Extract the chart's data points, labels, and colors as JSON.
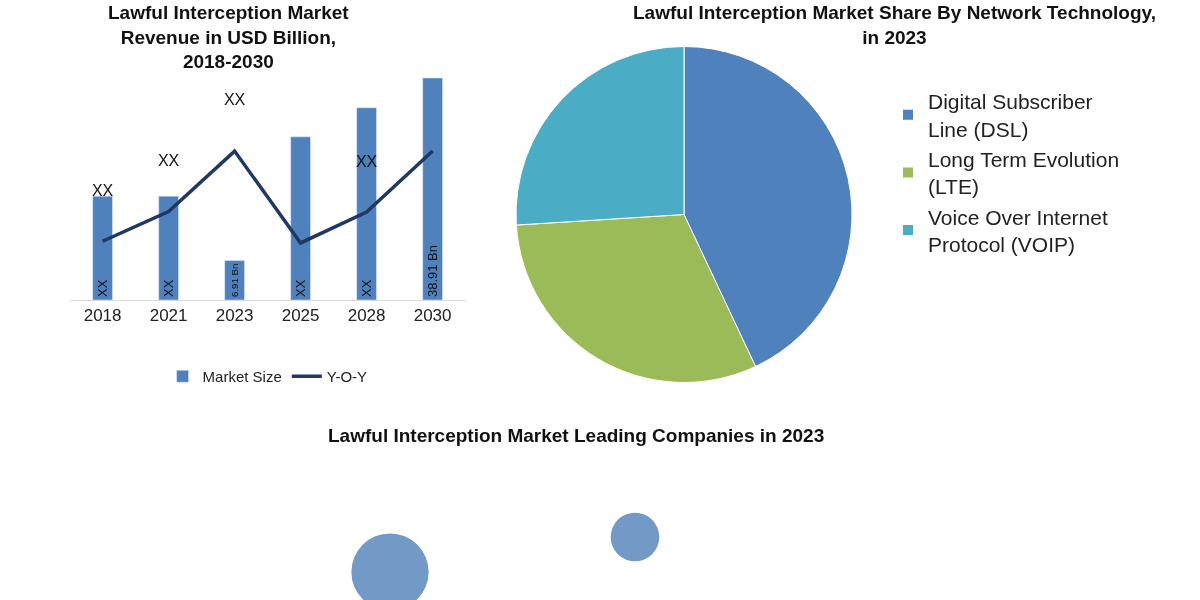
{
  "chart_data": [
    {
      "type": "bar",
      "title": "Lawful Interception Market Revenue in USD Billion, 2018-2030",
      "categories": [
        "2018",
        "2021",
        "2023",
        "2025",
        "2028",
        "2030"
      ],
      "legend": "bottom",
      "tick_labels": "x",
      "series": [
        {
          "name": "Market Size",
          "type": "bar",
          "color": "#4f81bd",
          "values": [
            18.2,
            18.2,
            6.91,
            28.6,
            33.7,
            38.91
          ],
          "value_labels": [
            "XX",
            "XX",
            "6.91 Bn",
            "XX",
            "XX",
            "38.91 Bn"
          ]
        },
        {
          "name": "Y-O-Y",
          "type": "line",
          "color": "#1f3864",
          "values": [
            10.3,
            15.5,
            26.1,
            10.0,
            15.4,
            26.1
          ],
          "value_labels": [
            "XX",
            "XX",
            "XX",
            null,
            "XX",
            null
          ]
        }
      ]
    },
    {
      "type": "pie",
      "title": "Lawful Interception Market Share By Network Technology, in 2023",
      "categories": [
        "Digital Subscriber Line (DSL)",
        "Long Term Evolution (LTE)",
        "Voice Over Internet Protocol (VOIP)"
      ],
      "values": [
        43,
        31,
        26
      ],
      "colors": [
        "#4f81bd",
        "#9bbb59",
        "#4bacc6"
      ],
      "legend": "right"
    },
    {
      "type": "other",
      "title": "Lawful Interception Market Leading Companies in 2023"
    }
  ]
}
